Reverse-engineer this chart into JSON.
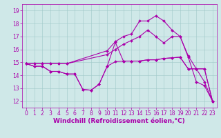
{
  "xlabel": "Windchill (Refroidissement éolien,°C)",
  "bg_color": "#cfe8e8",
  "line_color": "#aa00aa",
  "xlim": [
    -0.5,
    23.5
  ],
  "ylim": [
    11.5,
    19.5
  ],
  "yticks": [
    12,
    13,
    14,
    15,
    16,
    17,
    18,
    19
  ],
  "xticks": [
    0,
    1,
    2,
    3,
    4,
    5,
    6,
    7,
    8,
    9,
    10,
    11,
    12,
    13,
    14,
    15,
    16,
    17,
    18,
    19,
    20,
    21,
    22,
    23
  ],
  "line1_x": [
    0,
    1,
    2,
    3,
    4,
    5,
    10,
    11,
    12,
    13,
    14,
    15,
    16,
    17,
    18,
    19,
    20,
    21,
    22,
    23
  ],
  "line1_y": [
    14.9,
    14.9,
    14.9,
    14.9,
    14.9,
    14.9,
    15.6,
    16.0,
    16.4,
    16.7,
    17.0,
    17.5,
    17.0,
    16.5,
    17.0,
    17.0,
    15.4,
    13.5,
    13.2,
    12.0
  ],
  "line2_x": [
    0,
    1,
    2,
    3,
    4,
    5,
    10,
    11,
    12,
    13,
    14,
    15,
    16,
    17,
    18,
    19,
    20,
    21,
    22,
    23
  ],
  "line2_y": [
    14.9,
    14.9,
    14.9,
    14.9,
    14.9,
    14.9,
    15.9,
    16.6,
    17.0,
    17.2,
    18.2,
    18.2,
    18.6,
    18.2,
    17.5,
    17.0,
    15.5,
    14.5,
    13.5,
    12.0
  ],
  "line3_x": [
    0,
    1,
    2,
    3,
    4,
    5,
    6,
    7,
    8,
    9,
    10,
    11,
    12,
    13,
    14,
    15,
    16,
    17,
    18,
    19,
    20,
    21,
    22,
    23
  ],
  "line3_y": [
    14.9,
    14.7,
    14.7,
    14.3,
    14.3,
    14.1,
    14.1,
    12.9,
    12.85,
    13.3,
    14.7,
    15.05,
    15.1,
    15.1,
    15.1,
    15.2,
    15.2,
    15.3,
    15.35,
    15.4,
    14.5,
    14.5,
    14.5,
    12.0
  ],
  "line4_x": [
    0,
    1,
    2,
    3,
    4,
    5,
    6,
    7,
    8,
    9,
    10,
    11,
    12,
    13,
    14,
    15,
    16,
    17,
    18,
    19,
    20,
    21,
    22,
    23
  ],
  "line4_y": [
    14.9,
    14.7,
    14.7,
    14.3,
    14.3,
    14.1,
    14.1,
    12.9,
    12.85,
    13.3,
    14.7,
    16.55,
    15.1,
    15.1,
    15.1,
    15.2,
    15.2,
    15.3,
    15.35,
    15.4,
    14.5,
    14.5,
    14.5,
    12.0
  ],
  "grid_color": "#a0c8c8",
  "tick_fontsize": 5.5,
  "xlabel_fontsize": 6.5,
  "marker_size": 2.0,
  "linewidth": 0.8
}
